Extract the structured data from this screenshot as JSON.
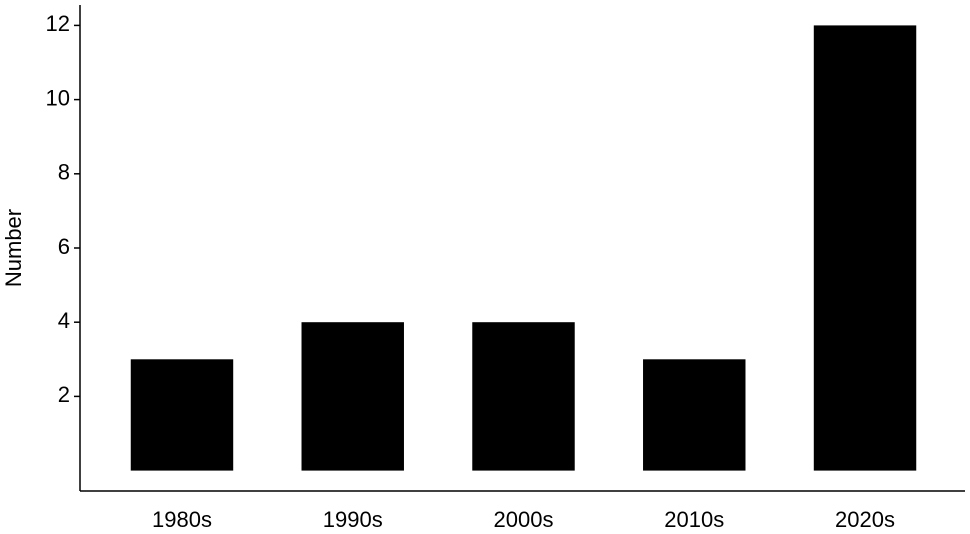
{
  "chart_data": {
    "type": "bar",
    "y_label": "Number",
    "categories": [
      "1980s",
      "1990s",
      "2000s",
      "2010s",
      "2020s"
    ],
    "values": [
      3,
      4,
      4,
      3,
      12
    ],
    "color": "#000000",
    "ylim": [
      -0.55,
      12.55
    ],
    "yticks": [
      2,
      4,
      6,
      8,
      10,
      12
    ],
    "grid": false
  }
}
